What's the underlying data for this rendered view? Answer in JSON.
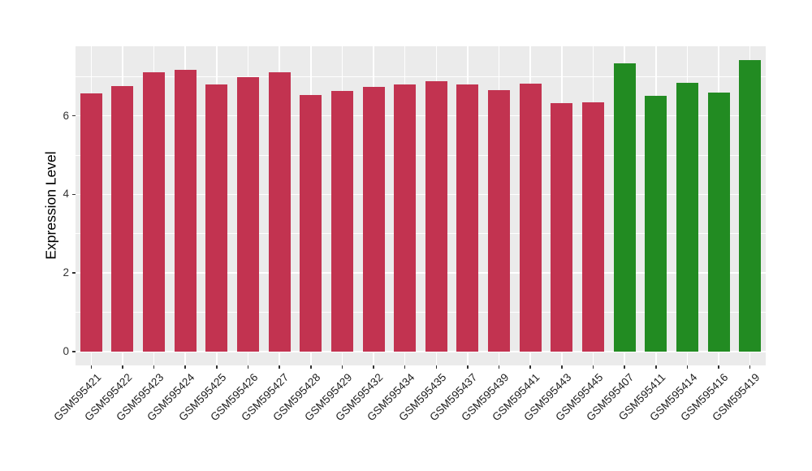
{
  "figure": {
    "background": "#FFFFFF",
    "panel_background": "#EBEBEB",
    "gridline_color": "#FFFFFF"
  },
  "chart_data": {
    "type": "bar",
    "title": "",
    "xlabel": "",
    "ylabel": "Expression Level",
    "ylim": [
      0,
      7.8
    ],
    "yticks": [
      0,
      2,
      4,
      6
    ],
    "minor_gridlines": [
      1,
      3,
      5,
      7
    ],
    "grid": "on",
    "legend_position": "none",
    "colors": {
      "red": "#C23350",
      "green": "#228B22"
    },
    "bars": [
      {
        "label": "GSM595421",
        "value": 6.57,
        "color": "red"
      },
      {
        "label": "GSM595422",
        "value": 6.76,
        "color": "red"
      },
      {
        "label": "GSM595423",
        "value": 7.11,
        "color": "red"
      },
      {
        "label": "GSM595424",
        "value": 7.16,
        "color": "red"
      },
      {
        "label": "GSM595425",
        "value": 6.79,
        "color": "red"
      },
      {
        "label": "GSM595426",
        "value": 6.98,
        "color": "red"
      },
      {
        "label": "GSM595427",
        "value": 7.11,
        "color": "red"
      },
      {
        "label": "GSM595428",
        "value": 6.52,
        "color": "red"
      },
      {
        "label": "GSM595429",
        "value": 6.63,
        "color": "red"
      },
      {
        "label": "GSM595432",
        "value": 6.73,
        "color": "red"
      },
      {
        "label": "GSM595434",
        "value": 6.8,
        "color": "red"
      },
      {
        "label": "GSM595435",
        "value": 6.87,
        "color": "red"
      },
      {
        "label": "GSM595437",
        "value": 6.8,
        "color": "red"
      },
      {
        "label": "GSM595439",
        "value": 6.66,
        "color": "red"
      },
      {
        "label": "GSM595441",
        "value": 6.81,
        "color": "red"
      },
      {
        "label": "GSM595443",
        "value": 6.32,
        "color": "red"
      },
      {
        "label": "GSM595445",
        "value": 6.34,
        "color": "red"
      },
      {
        "label": "GSM595407",
        "value": 7.34,
        "color": "green"
      },
      {
        "label": "GSM595411",
        "value": 6.5,
        "color": "green"
      },
      {
        "label": "GSM595414",
        "value": 6.84,
        "color": "green"
      },
      {
        "label": "GSM595416",
        "value": 6.6,
        "color": "green"
      },
      {
        "label": "GSM595419",
        "value": 7.41,
        "color": "green"
      }
    ]
  }
}
